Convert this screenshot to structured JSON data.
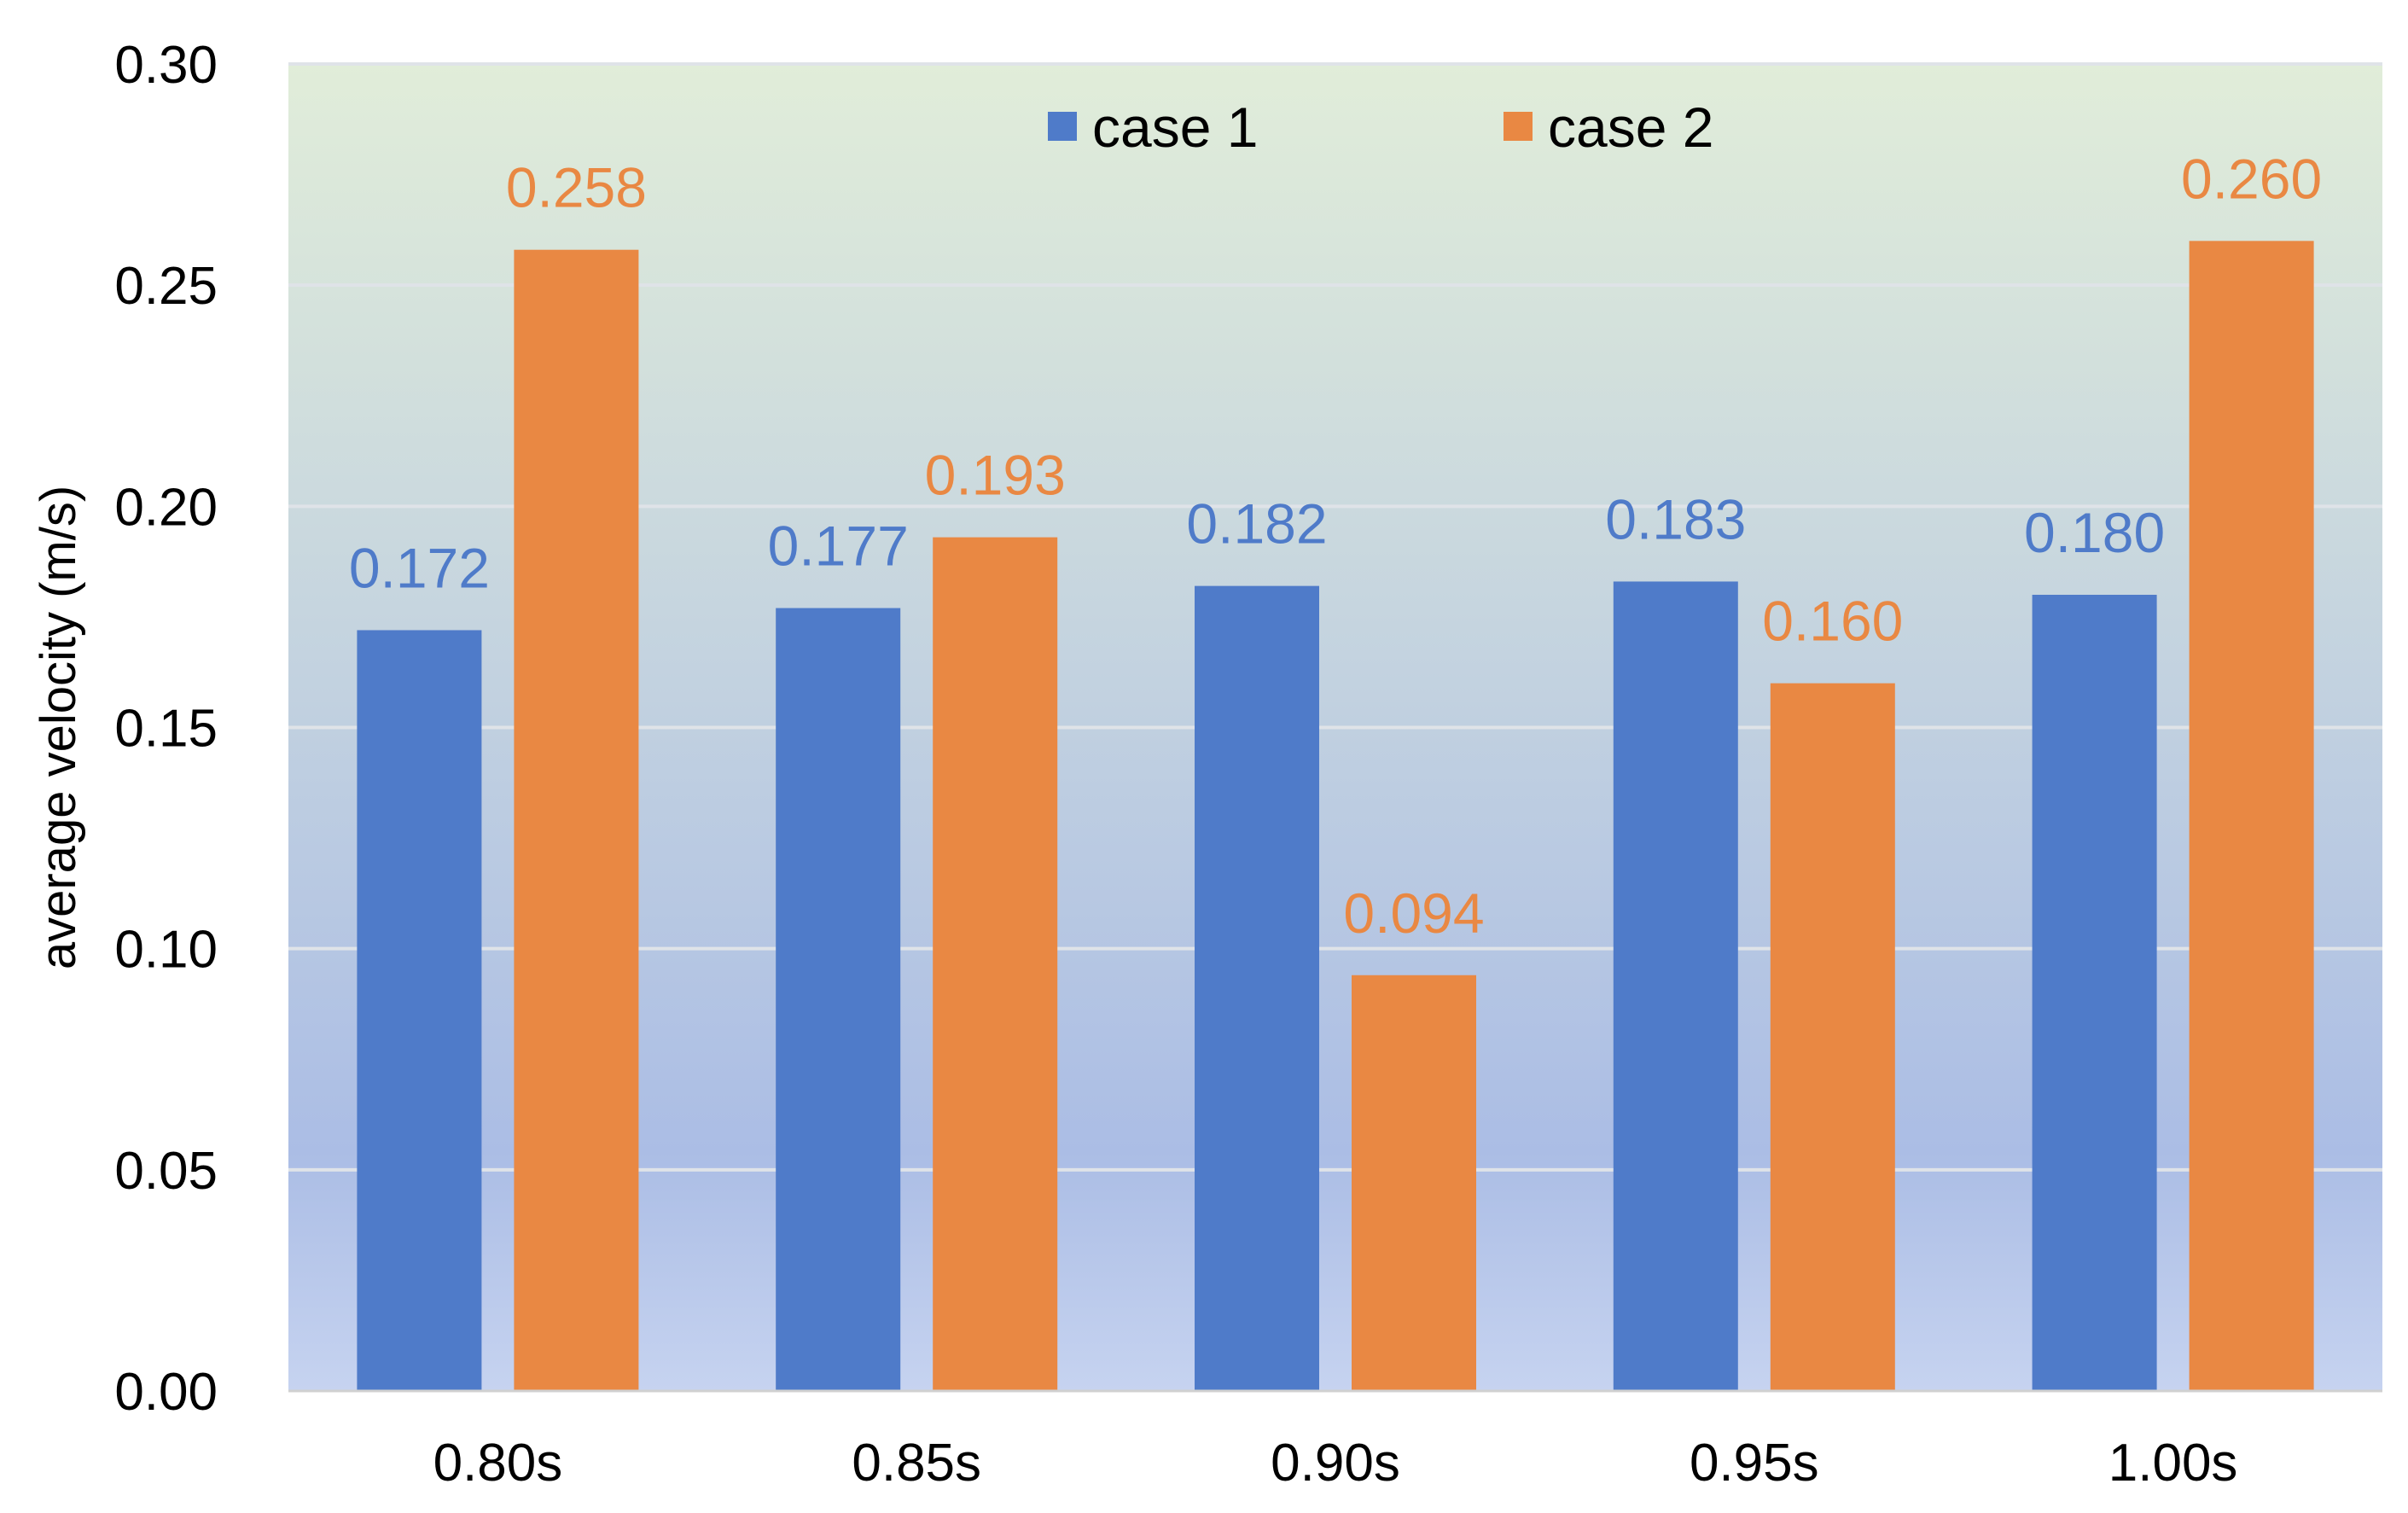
{
  "chart_data": {
    "type": "bar",
    "title": "",
    "xlabel": "",
    "ylabel": "average velocity (m/s)",
    "ylim": [
      0,
      0.3
    ],
    "yticks": [
      "0.00",
      "0.05",
      "0.10",
      "0.15",
      "0.20",
      "0.25",
      "0.30"
    ],
    "grid": true,
    "legend_position": "top-center",
    "categories": [
      "0.80s",
      "0.85s",
      "0.90s",
      "0.95s",
      "1.00s"
    ],
    "series": [
      {
        "name": "case 1",
        "color": "#4f7bc9",
        "values": [
          0.172,
          0.177,
          0.182,
          0.183,
          0.18
        ],
        "labels": [
          "0.172",
          "0.177",
          "0.182",
          "0.183",
          "0.180"
        ]
      },
      {
        "name": "case 2",
        "color": "#e98843",
        "values": [
          0.258,
          0.193,
          0.094,
          0.16,
          0.26
        ],
        "labels": [
          "0.258",
          "0.193",
          "0.094",
          "0.160",
          "0.260"
        ]
      }
    ],
    "background_gradient": [
      "#e1edd9",
      "#abbde5",
      "#c6d3f0"
    ]
  }
}
